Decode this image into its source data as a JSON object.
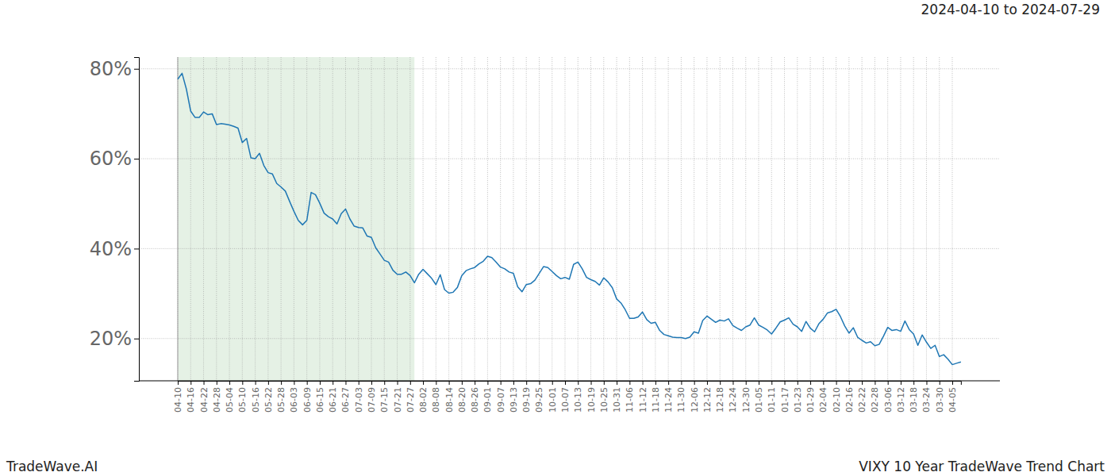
{
  "chart_data": {
    "type": "line",
    "title": "VIXY 10 Year TradeWave Trend Chart",
    "subtitle": "2024-04-10 to 2024-07-29",
    "footer": "TradeWave.AI",
    "color": "#1f77b4",
    "grid": true,
    "highlight": {
      "start": 0,
      "end": 55
    },
    "ylim": [
      10.6,
      82.6
    ],
    "yticks": [
      {
        "value": 20,
        "label": "20%"
      },
      {
        "value": 40,
        "label": "40%"
      },
      {
        "value": 60,
        "label": "60%"
      },
      {
        "value": 80,
        "label": "80%"
      }
    ],
    "categories": [
      "04-10",
      null,
      null,
      "04-16",
      null,
      null,
      "04-22",
      null,
      null,
      "04-28",
      null,
      null,
      "05-04",
      null,
      null,
      "05-10",
      null,
      null,
      "05-16",
      null,
      null,
      "05-22",
      null,
      null,
      "05-28",
      null,
      null,
      "06-03",
      null,
      null,
      "06-09",
      null,
      null,
      "06-15",
      null,
      null,
      "06-21",
      null,
      null,
      "06-27",
      null,
      null,
      "07-03",
      null,
      null,
      "07-09",
      null,
      null,
      "07-15",
      null,
      null,
      "07-21",
      null,
      null,
      "07-27",
      null,
      null,
      "08-02",
      null,
      null,
      "08-08",
      null,
      null,
      "08-14",
      null,
      null,
      "08-20",
      null,
      null,
      "08-26",
      null,
      null,
      "09-01",
      null,
      null,
      "09-07",
      null,
      null,
      "09-13",
      null,
      null,
      "09-19",
      null,
      null,
      "09-25",
      null,
      null,
      "10-01",
      null,
      null,
      "10-07",
      null,
      null,
      "10-13",
      null,
      null,
      "10-19",
      null,
      null,
      "10-25",
      null,
      null,
      "10-31",
      null,
      null,
      "11-06",
      null,
      null,
      "11-12",
      null,
      null,
      "11-18",
      null,
      null,
      "11-24",
      null,
      null,
      "11-30",
      null,
      null,
      "12-06",
      null,
      null,
      "12-12",
      null,
      null,
      "12-18",
      null,
      null,
      "12-24",
      null,
      null,
      "12-30",
      null,
      null,
      "01-05",
      null,
      null,
      "01-11",
      null,
      null,
      "01-17",
      null,
      null,
      "01-23",
      null,
      null,
      "01-29",
      null,
      null,
      "02-04",
      null,
      null,
      "02-10",
      null,
      null,
      "02-16",
      null,
      null,
      "02-22",
      null,
      null,
      "02-28",
      null,
      null,
      "03-06",
      null,
      null,
      "03-12",
      null,
      null,
      "03-18",
      null,
      null,
      "03-24",
      null,
      null,
      "03-30",
      null,
      null,
      "04-05",
      null,
      null
    ],
    "values": [
      77.7,
      79.0,
      75.5,
      70.6,
      69.2,
      69.2,
      70.4,
      69.8,
      70.0,
      67.6,
      67.8,
      67.7,
      67.5,
      67.2,
      66.8,
      63.6,
      64.5,
      60.2,
      60.0,
      61.2,
      58.5,
      56.9,
      56.6,
      54.5,
      53.7,
      52.8,
      50.5,
      48.3,
      46.3,
      45.3,
      46.3,
      52.5,
      52.0,
      50.1,
      47.9,
      47.1,
      46.6,
      45.5,
      47.8,
      48.8,
      46.6,
      45.0,
      44.7,
      44.6,
      42.8,
      42.5,
      40.2,
      38.8,
      37.4,
      37.0,
      35.2,
      34.3,
      34.3,
      34.8,
      34.0,
      32.4,
      34.3,
      35.4,
      34.4,
      33.4,
      32.0,
      34.2,
      30.9,
      30.1,
      30.3,
      31.4,
      34.0,
      35.1,
      35.5,
      35.8,
      36.6,
      37.2,
      38.3,
      38.0,
      37.0,
      35.9,
      35.5,
      34.8,
      34.5,
      31.5,
      30.4,
      32.0,
      32.2,
      33.0,
      34.5,
      36.0,
      35.8,
      34.9,
      34.0,
      33.3,
      33.6,
      33.2,
      36.5,
      37.0,
      35.5,
      33.6,
      33.1,
      32.7,
      31.9,
      33.5,
      32.6,
      31.3,
      28.8,
      27.9,
      26.4,
      24.5,
      24.5,
      24.8,
      25.9,
      24.2,
      23.4,
      23.6,
      21.8,
      20.9,
      20.6,
      20.3,
      20.2,
      20.2,
      20.0,
      20.3,
      21.5,
      21.2,
      24.0,
      25.0,
      24.3,
      23.6,
      24.1,
      23.9,
      24.4,
      22.9,
      22.3,
      21.8,
      22.6,
      23.0,
      24.6,
      23.0,
      22.5,
      21.9,
      21.0,
      22.3,
      23.7,
      24.1,
      24.6,
      23.2,
      22.6,
      21.6,
      23.8,
      22.3,
      21.5,
      23.3,
      24.3,
      25.7,
      26.0,
      26.5,
      24.9,
      22.8,
      21.2,
      22.4,
      20.3,
      19.6,
      19.0,
      19.3,
      18.4,
      18.7,
      20.5,
      22.5,
      21.8,
      22.0,
      21.6,
      23.9,
      22.0,
      21.0,
      18.5,
      20.8,
      19.2,
      17.8,
      18.5,
      16.0,
      16.4,
      15.4,
      14.2,
      14.5,
      14.8
    ]
  }
}
